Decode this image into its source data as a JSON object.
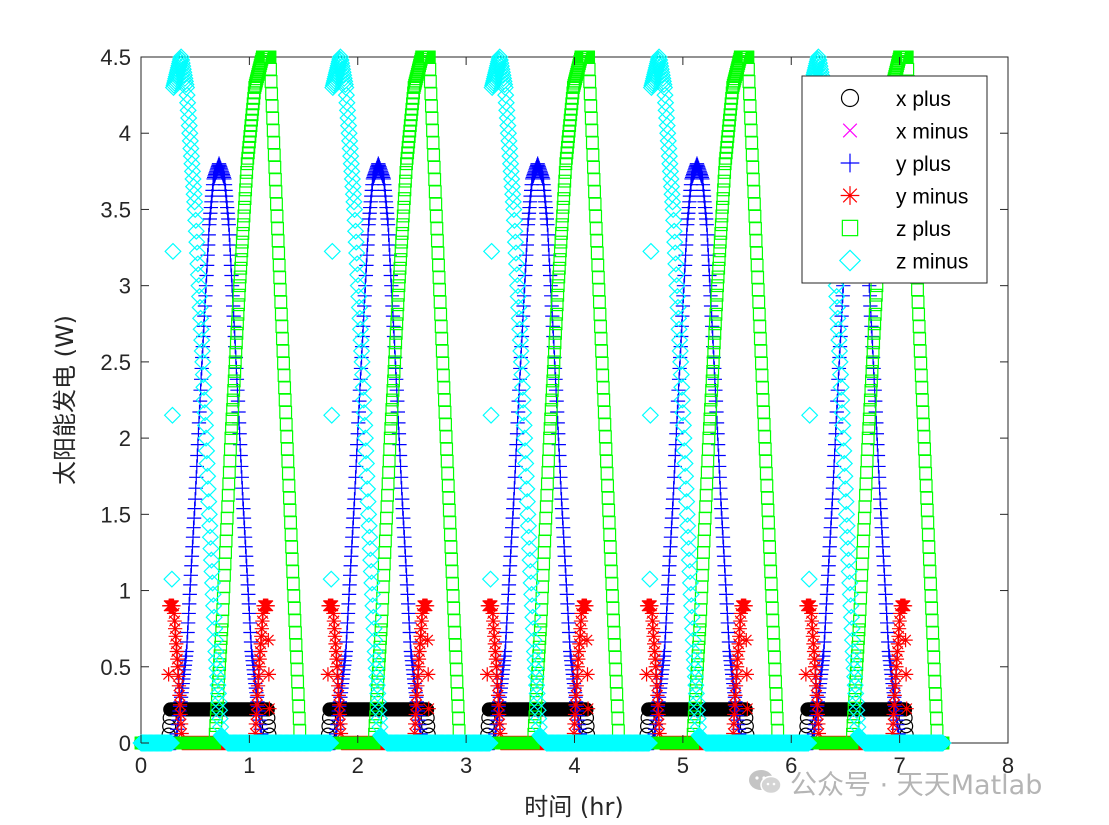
{
  "chart_data": {
    "type": "scatter",
    "xlabel": "时间 (hr)",
    "ylabel": "太阳能发电 (W)",
    "xlim": [
      0,
      8
    ],
    "ylim": [
      0,
      4.5
    ],
    "xticks": [
      0,
      1,
      2,
      3,
      4,
      5,
      6,
      7,
      8
    ],
    "yticks": [
      0,
      0.5,
      1,
      1.5,
      2,
      2.5,
      3,
      3.5,
      4,
      4.5
    ],
    "xtick_labels": [
      "0",
      "1",
      "2",
      "3",
      "4",
      "5",
      "6",
      "7",
      "8"
    ],
    "ytick_labels": [
      "0",
      "0.5",
      "1",
      "1.5",
      "2",
      "2.5",
      "3",
      "3.5",
      "4",
      "4.5"
    ],
    "grid": false,
    "legend_position": "top-right",
    "period_hr": 1.47,
    "sample_step_hr": 0.005,
    "time_range": [
      0,
      7.4
    ],
    "series": [
      {
        "name": "x plus",
        "marker": "circle",
        "color": "#000000",
        "pattern": [
          [
            0.25,
            0.0
          ],
          [
            0.27,
            0.22
          ],
          [
            1.17,
            0.22
          ],
          [
            1.19,
            0.0
          ]
        ]
      },
      {
        "name": "x minus",
        "marker": "x",
        "color": "#ff00ff",
        "pattern": []
      },
      {
        "name": "y plus",
        "marker": "plus",
        "color": "#0000ff",
        "pattern": [
          [
            0.32,
            0.0
          ],
          [
            0.42,
            0.6
          ],
          [
            0.5,
            1.6
          ],
          [
            0.57,
            2.6
          ],
          [
            0.63,
            3.4
          ],
          [
            0.67,
            3.7
          ],
          [
            0.72,
            3.8
          ],
          [
            0.77,
            3.7
          ],
          [
            0.81,
            3.4
          ],
          [
            0.87,
            2.6
          ],
          [
            0.94,
            1.6
          ],
          [
            1.02,
            0.6
          ],
          [
            1.12,
            0.0
          ]
        ]
      },
      {
        "name": "y minus",
        "marker": "star",
        "color": "#ff0000",
        "pattern": [
          [
            0.25,
            0.0
          ],
          [
            0.26,
            0.9
          ],
          [
            0.3,
            0.9
          ],
          [
            0.34,
            0.5
          ],
          [
            0.38,
            0.0
          ],
          [
            1.05,
            0.0
          ],
          [
            1.09,
            0.5
          ],
          [
            1.13,
            0.9
          ],
          [
            1.17,
            0.9
          ],
          [
            1.19,
            0.0
          ]
        ]
      },
      {
        "name": "z plus",
        "marker": "square",
        "color": "#00ff00",
        "pattern": [
          [
            0.0,
            0.0
          ],
          [
            0.68,
            0.0
          ],
          [
            0.75,
            0.8
          ],
          [
            0.83,
            2.0
          ],
          [
            0.91,
            3.0
          ],
          [
            0.98,
            3.8
          ],
          [
            1.05,
            4.3
          ],
          [
            1.12,
            4.5
          ],
          [
            1.19,
            4.5
          ],
          [
            1.47,
            0.0
          ]
        ]
      },
      {
        "name": "z minus",
        "marker": "diamond",
        "color": "#00ffff",
        "pattern": [
          [
            0.0,
            0.0
          ],
          [
            0.2,
            0.0
          ],
          [
            0.28,
            0.0
          ],
          [
            0.3,
            4.3
          ],
          [
            0.37,
            4.5
          ],
          [
            0.42,
            4.3
          ],
          [
            0.5,
            3.5
          ],
          [
            0.57,
            2.5
          ],
          [
            0.63,
            1.5
          ],
          [
            0.69,
            0.6
          ],
          [
            0.74,
            0.05
          ],
          [
            0.8,
            0.0
          ],
          [
            1.47,
            0.0
          ]
        ]
      }
    ]
  },
  "watermark": {
    "icon": "wechat-icon",
    "text": "公众号 · 天天Matlab"
  }
}
